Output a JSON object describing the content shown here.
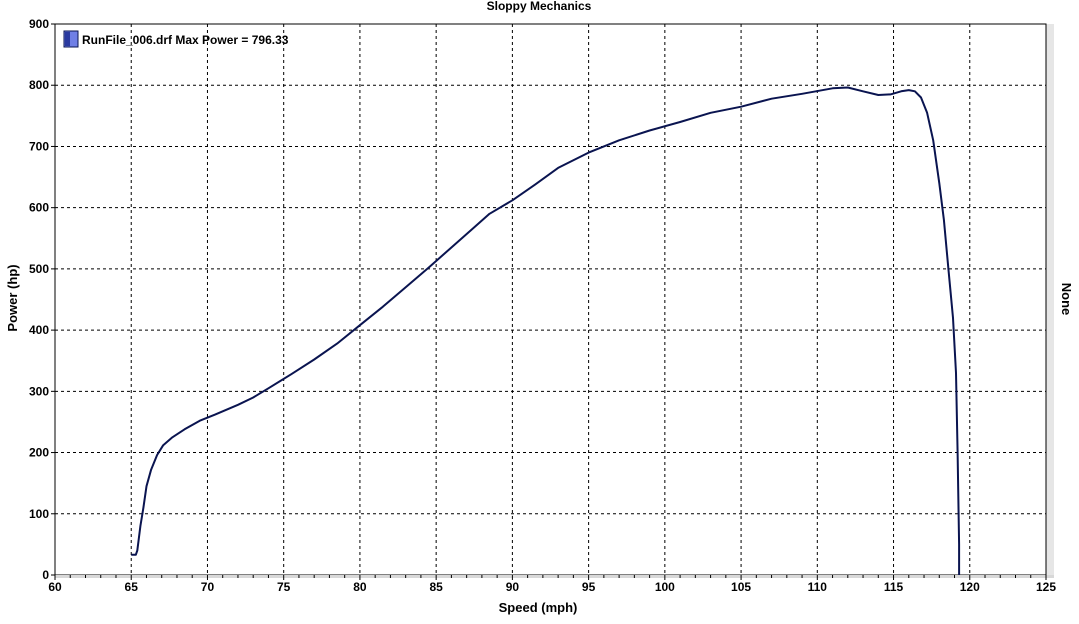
{
  "chart_data": {
    "type": "line",
    "title": "Sloppy Mechanics",
    "xlabel": "Speed (mph)",
    "ylabel": "Power (hp)",
    "right_axis_label": "None",
    "xlim": [
      60,
      125
    ],
    "ylim": [
      0,
      900
    ],
    "x_ticks": [
      60,
      65,
      70,
      75,
      80,
      85,
      90,
      95,
      100,
      105,
      110,
      115,
      120,
      125
    ],
    "y_ticks": [
      0,
      100,
      200,
      300,
      400,
      500,
      600,
      700,
      800,
      900
    ],
    "grid": true,
    "legend_position": "top-left",
    "series": [
      {
        "name": "RunFile_006.drf Max Power = 796.33",
        "color": "#0a1450",
        "x": [
          65.0,
          65.3,
          65.4,
          65.6,
          65.8,
          66.0,
          66.3,
          66.7,
          67.1,
          67.7,
          68.5,
          69.5,
          70.5,
          72.0,
          73.0,
          74.0,
          75.5,
          77.0,
          78.5,
          80.0,
          81.5,
          83.0,
          84.5,
          86.0,
          87.5,
          88.5,
          90.0,
          91.5,
          93.0,
          95.0,
          97.0,
          99.0,
          101.0,
          103.0,
          105.0,
          107.0,
          109.0,
          111.0,
          112.0,
          113.0,
          114.0,
          114.8,
          115.5,
          116.0,
          116.4,
          116.8,
          117.2,
          117.6,
          118.0,
          118.3,
          118.6,
          118.9,
          119.1,
          119.2,
          119.3,
          119.3
        ],
        "y": [
          33,
          33,
          40,
          80,
          110,
          145,
          172,
          196,
          212,
          225,
          238,
          252,
          262,
          278,
          290,
          305,
          328,
          352,
          378,
          408,
          438,
          470,
          502,
          535,
          568,
          590,
          612,
          638,
          665,
          690,
          710,
          726,
          740,
          755,
          765,
          778,
          786,
          795,
          796.33,
          790,
          784,
          785,
          790,
          792,
          790,
          780,
          755,
          710,
          640,
          580,
          500,
          420,
          330,
          200,
          50,
          0
        ]
      }
    ]
  }
}
